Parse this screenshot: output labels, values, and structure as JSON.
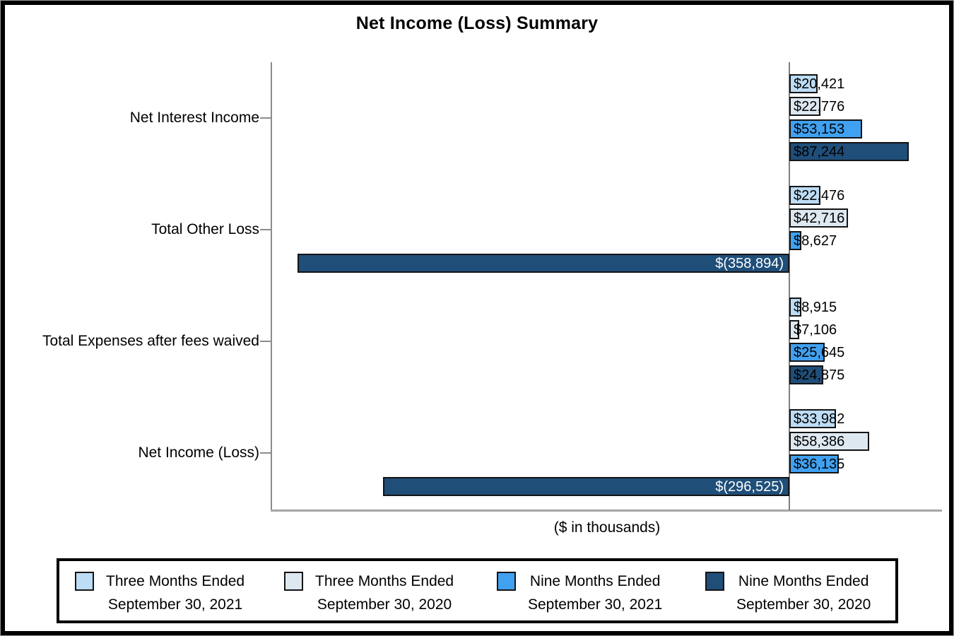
{
  "title": "Net Income (Loss) Summary",
  "xlabel": "($ in thousands)",
  "chart_data": {
    "type": "bar",
    "orientation": "horizontal",
    "title": "Net Income (Loss) Summary",
    "xlabel": "($ in thousands)",
    "unit": "thousands of dollars",
    "categories": [
      "Net Interest Income",
      "Total Other Loss",
      "Total Expenses after fees waived",
      "Net Income (Loss)"
    ],
    "series": [
      {
        "name": "Three Months Ended September 30, 2021",
        "color": "#BDDCF5",
        "values": [
          20421,
          22476,
          8915,
          33982
        ],
        "labels": [
          "$20,421",
          "$22,476",
          "$8,915",
          "$33,982"
        ]
      },
      {
        "name": "Three Months Ended September 30, 2020",
        "color": "#DEE8F1",
        "values": [
          22776,
          42716,
          7106,
          58386
        ],
        "labels": [
          "$22,776",
          "$42,716",
          "$7,106",
          "$58,386"
        ]
      },
      {
        "name": "Nine Months Ended September 30, 2021",
        "color": "#41A1F1",
        "values": [
          53153,
          8627,
          25645,
          36135
        ],
        "labels": [
          "$53,153",
          "$8,627",
          "$25,645",
          "$36,135"
        ]
      },
      {
        "name": "Nine Months Ended September 30, 2020",
        "color": "#1F4E79",
        "values": [
          87244,
          -358894,
          24875,
          -296525
        ],
        "labels": [
          "$87,244",
          "$(358,894)",
          "$24,875",
          "$(296,525)"
        ]
      }
    ],
    "value_axis_range": [
      -380000,
      112000
    ],
    "grid": false,
    "legend_position": "bottom",
    "bar_label_position": "inside-base",
    "negative_label_color": "#FFFFFF",
    "positive_label_color": "#000000"
  },
  "legend": {
    "entries": [
      {
        "line1": "Three Months Ended",
        "line2": "September 30, 2021",
        "color": "#BDDCF5"
      },
      {
        "line1": "Three Months Ended",
        "line2": "September 30, 2020",
        "color": "#DEE8F1"
      },
      {
        "line1": "Nine Months Ended",
        "line2": "September 30, 2021",
        "color": "#41A1F1"
      },
      {
        "line1": "Nine Months Ended",
        "line2": "September 30, 2020",
        "color": "#1F4E79"
      }
    ]
  }
}
